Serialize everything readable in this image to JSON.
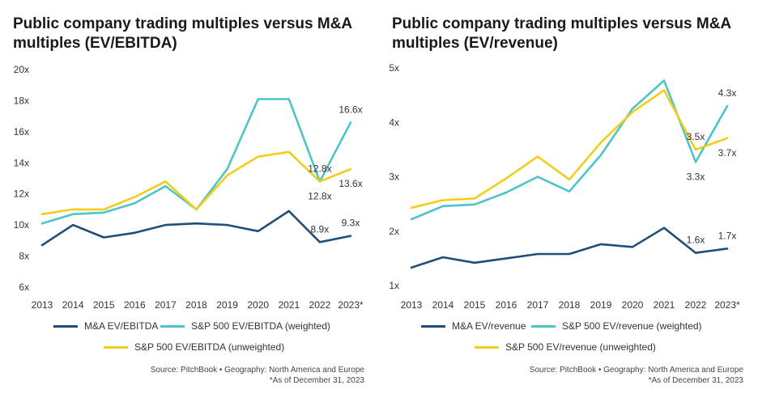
{
  "colors": {
    "dark": "#1f4e79",
    "teal": "#4cc4c8",
    "yellow": "#f2cd1c"
  },
  "chart_data": [
    {
      "type": "line",
      "title": "Public company trading multiples versus M&A multiples (EV/EBITDA)",
      "categories": [
        "2013",
        "2014",
        "2015",
        "2016",
        "2017",
        "2018",
        "2019",
        "2020",
        "2021",
        "2022",
        "2023*"
      ],
      "y_ticks": [
        "6x",
        "8x",
        "10x",
        "12x",
        "14x",
        "16x",
        "18x",
        "20x"
      ],
      "ylim": [
        6,
        20
      ],
      "series": [
        {
          "name": "M&A EV/EBITDA",
          "color": "dark",
          "values": [
            8.7,
            10.0,
            9.2,
            9.5,
            10.0,
            10.1,
            10.0,
            9.6,
            10.9,
            8.9,
            9.3
          ]
        },
        {
          "name": "S&P 500 EV/EBITDA (weighted)",
          "color": "teal",
          "values": [
            10.1,
            10.7,
            10.8,
            11.4,
            12.5,
            11.0,
            13.6,
            18.1,
            18.1,
            12.8,
            16.6
          ]
        },
        {
          "name": "S&P 500 EV/EBITDA (unweighted)",
          "color": "yellow",
          "values": [
            10.7,
            11.0,
            11.0,
            11.8,
            12.8,
            11.0,
            13.2,
            14.4,
            14.7,
            12.8,
            13.6
          ]
        }
      ],
      "data_labels": [
        {
          "text": "16.6x",
          "series": 1,
          "index": 10,
          "pos": "above"
        },
        {
          "text": "12.8x",
          "series": 1,
          "index": 9,
          "pos": "above"
        },
        {
          "text": "12.8x",
          "series": 2,
          "index": 9,
          "pos": "below"
        },
        {
          "text": "13.6x",
          "series": 2,
          "index": 10,
          "pos": "below"
        },
        {
          "text": "8.9x",
          "series": 0,
          "index": 9,
          "pos": "above"
        },
        {
          "text": "9.3x",
          "series": 0,
          "index": 10,
          "pos": "above"
        }
      ],
      "source": "Source: PitchBook  •  Geography: North America and Europe",
      "note": "*As of December 31, 2023"
    },
    {
      "type": "line",
      "title": "Public company trading multiples versus M&A multiples (EV/revenue)",
      "categories": [
        "2013",
        "2014",
        "2015",
        "2016",
        "2017",
        "2018",
        "2019",
        "2020",
        "2021",
        "2022",
        "2023*"
      ],
      "y_ticks": [
        "1x",
        "2x",
        "3x",
        "4x",
        "5x"
      ],
      "ylim": [
        1,
        5
      ],
      "series": [
        {
          "name": "M&A EV/revenue",
          "color": "dark",
          "values": [
            1.33,
            1.52,
            1.42,
            1.5,
            1.58,
            1.58,
            1.76,
            1.71,
            2.06,
            1.6,
            1.68
          ]
        },
        {
          "name": "S&P 500 EV/revenue (weighted)",
          "color": "teal",
          "values": [
            2.22,
            2.46,
            2.49,
            2.71,
            3.0,
            2.73,
            3.4,
            4.25,
            4.77,
            3.27,
            4.3
          ]
        },
        {
          "name": "S&P 500 EV/revenue (unweighted)",
          "color": "yellow",
          "values": [
            2.43,
            2.57,
            2.6,
            2.97,
            3.37,
            2.95,
            3.63,
            4.19,
            4.59,
            3.5,
            3.71
          ]
        }
      ],
      "data_labels": [
        {
          "text": "4.3x",
          "series": 1,
          "index": 10,
          "pos": "above"
        },
        {
          "text": "3.5x",
          "series": 2,
          "index": 9,
          "pos": "above"
        },
        {
          "text": "3.3x",
          "series": 1,
          "index": 9,
          "pos": "below"
        },
        {
          "text": "3.7x",
          "series": 2,
          "index": 10,
          "pos": "below"
        },
        {
          "text": "1.6x",
          "series": 0,
          "index": 9,
          "pos": "above"
        },
        {
          "text": "1.7x",
          "series": 0,
          "index": 10,
          "pos": "above"
        }
      ],
      "source": "Source: PitchBook  •  Geography: North America and Europe",
      "note": "*As of December 31, 2023"
    }
  ]
}
